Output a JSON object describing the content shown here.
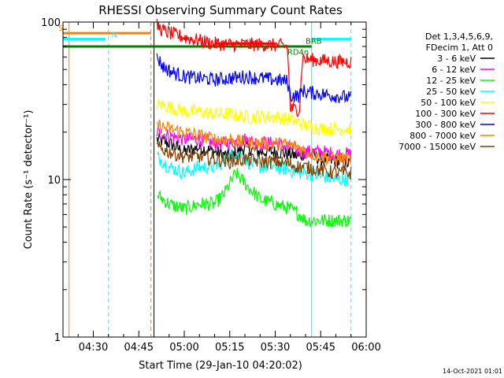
{
  "chart_data": {
    "type": "line",
    "title": "RHESSI Observing Summary Count Rates",
    "xlabel": "Start Time (29-Jan-10 04:20:02)",
    "ylabel": "Count Rate (s⁻¹ detector⁻¹)",
    "yscale": "log",
    "ylim": [
      1,
      100
    ],
    "xlim": [
      "04:20",
      "06:00"
    ],
    "x_ticks": [
      "04:30",
      "04:45",
      "05:00",
      "05:15",
      "05:30",
      "05:45",
      "06:00"
    ],
    "y_ticks": [
      "1",
      "10",
      "100"
    ],
    "footer_date": "14-Oct-2021 01:01",
    "legend_header": [
      "Det 1,3,4,5,6,9,",
      "FDecim 1, Att 0"
    ],
    "legend_position": "right",
    "grid": false,
    "series": [
      {
        "name": "3 - 6 keV",
        "color": "#000000",
        "x": [
          "04:51",
          "04:55",
          "05:00",
          "05:05",
          "05:10",
          "05:15",
          "05:20",
          "05:25",
          "05:30",
          "05:35",
          "05:38",
          "05:40",
          "05:45",
          "05:50",
          "05:55"
        ],
        "y": [
          18,
          17,
          15,
          16,
          15,
          14,
          16,
          15,
          15,
          14.5,
          14,
          15,
          13.5,
          13,
          12.5
        ]
      },
      {
        "name": "6 - 12 keV",
        "color": "#ff00ff",
        "x": [
          "04:51",
          "04:55",
          "05:00",
          "05:05",
          "05:10",
          "05:15",
          "05:20",
          "05:25",
          "05:30",
          "05:35",
          "05:38",
          "05:40",
          "05:45",
          "05:50",
          "05:55"
        ],
        "y": [
          20,
          19,
          18,
          18,
          17,
          17,
          18,
          17,
          17,
          16,
          15,
          15,
          15,
          14.5,
          14.5
        ]
      },
      {
        "name": "12 - 25 keV",
        "color": "#00ff00",
        "x": [
          "04:51",
          "04:55",
          "05:00",
          "05:05",
          "05:10",
          "05:13",
          "05:17",
          "05:21",
          "05:25",
          "05:30",
          "05:35",
          "05:38",
          "05:40",
          "05:45",
          "05:50",
          "05:55"
        ],
        "y": [
          8,
          7,
          6.5,
          7,
          7,
          8,
          11,
          9,
          7.5,
          7,
          6.5,
          6,
          5.5,
          5.5,
          5.5,
          5.5
        ]
      },
      {
        "name": "25 - 50 keV",
        "color": "#00ffff",
        "x": [
          "04:51",
          "04:55",
          "05:00",
          "05:05",
          "05:10",
          "05:13",
          "05:17",
          "05:21",
          "05:25",
          "05:30",
          "05:35",
          "05:38",
          "05:40",
          "05:45",
          "05:50",
          "05:55"
        ],
        "y": [
          14,
          12,
          11,
          12,
          12,
          13,
          15,
          13,
          12,
          12,
          11.5,
          11,
          11,
          10.5,
          10,
          10
        ]
      },
      {
        "name": "50 - 100 keV",
        "color": "#ffff00",
        "x": [
          "04:51",
          "04:55",
          "05:00",
          "05:05",
          "05:10",
          "05:15",
          "05:20",
          "05:25",
          "05:30",
          "05:35",
          "05:38",
          "05:40",
          "05:45",
          "05:50",
          "05:55"
        ],
        "y": [
          30,
          29,
          27,
          27,
          26,
          26,
          25,
          25,
          25,
          24,
          23,
          22,
          21,
          21,
          21
        ]
      },
      {
        "name": "100 - 300 keV",
        "color": "#ff0000",
        "x": [
          "04:51",
          "04:53",
          "04:56",
          "05:00",
          "05:05",
          "05:10",
          "05:15",
          "05:20",
          "05:25",
          "05:30",
          "05:34",
          "05:35",
          "05:38",
          "05:39",
          "05:40",
          "05:45",
          "05:50",
          "05:55"
        ],
        "y": [
          95,
          88,
          84,
          80,
          76,
          73,
          72,
          72,
          72,
          71,
          70,
          28,
          28,
          60,
          58,
          57,
          56,
          56
        ]
      },
      {
        "name": "300 - 800 keV",
        "color": "#0000ff",
        "x": [
          "04:51",
          "04:53",
          "04:56",
          "05:00",
          "05:05",
          "05:10",
          "05:15",
          "05:20",
          "05:25",
          "05:30",
          "05:34",
          "05:35",
          "05:38",
          "05:39",
          "05:40",
          "05:45",
          "05:50",
          "05:55"
        ],
        "y": [
          60,
          52,
          48,
          45,
          44,
          43,
          44,
          45,
          44,
          43,
          42,
          34,
          34,
          37,
          36,
          35,
          34,
          33
        ]
      },
      {
        "name": "800 - 7000 keV",
        "color": "#ff8000",
        "x": [
          "04:51",
          "04:55",
          "05:00",
          "05:05",
          "05:10",
          "05:15",
          "05:20",
          "05:25",
          "05:30",
          "05:35",
          "05:38",
          "05:40",
          "05:45",
          "05:50",
          "05:55"
        ],
        "y": [
          22,
          21,
          20,
          19,
          18,
          18,
          17,
          17,
          17,
          16.5,
          16,
          15,
          14,
          13.5,
          13.5
        ]
      },
      {
        "name": "7000 - 15000 keV",
        "color": "#804000",
        "x": [
          "04:51",
          "04:55",
          "05:00",
          "05:05",
          "05:10",
          "05:15",
          "05:20",
          "05:25",
          "05:30",
          "05:35",
          "05:38",
          "05:40",
          "05:45",
          "05:50",
          "05:55"
        ],
        "y": [
          16,
          15,
          14,
          14,
          13.5,
          13,
          13.5,
          13,
          13,
          12.5,
          12,
          12,
          11.5,
          11,
          11
        ]
      }
    ],
    "annotations": [
      {
        "label": "S",
        "color": "#ff8000"
      },
      {
        "label": "N",
        "color": "#00ffff"
      },
      {
        "label": "RD4n",
        "color": "#008000"
      },
      {
        "label": "BRB",
        "color": "#008000"
      }
    ],
    "flag_bars": [
      {
        "label": "S",
        "color": "#ff8000",
        "y": 85,
        "x": [
          "04:20",
          "04:49"
        ]
      },
      {
        "label": "N",
        "color": "#00ffff",
        "y": 78,
        "x": [
          "04:20",
          "04:34"
        ]
      },
      {
        "label": "",
        "color": "#00ffff",
        "y": 78,
        "x": [
          "05:42",
          "05:55"
        ]
      },
      {
        "label": "",
        "color": "#008000",
        "y": 70,
        "x": [
          "04:20",
          "05:42"
        ]
      },
      {
        "label": "",
        "color": "#ff0000",
        "y": 73,
        "x": [
          "05:10",
          "05:30"
        ]
      }
    ],
    "vertical_lines": [
      {
        "x": "04:20",
        "color": "#00ffff",
        "style": "solid"
      },
      {
        "x": "04:22",
        "color": "#ff8000",
        "style": "solid"
      },
      {
        "x": "04:35",
        "color": "#00ffff",
        "style": "dashed"
      },
      {
        "x": "04:49",
        "color": "#ff8000",
        "style": "dashed"
      },
      {
        "x": "04:50",
        "color": "#000000",
        "style": "solid"
      },
      {
        "x": "05:42",
        "color": "#00ffff",
        "style": "solid"
      },
      {
        "x": "05:55",
        "color": "#00ffff",
        "style": "dashed"
      }
    ]
  }
}
